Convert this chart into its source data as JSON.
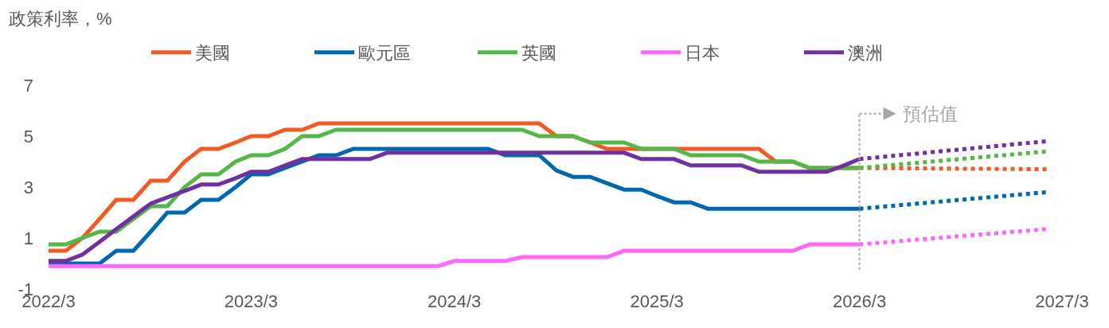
{
  "chart_data": {
    "type": "line",
    "ylabel": "政策利率，%",
    "x": [
      "2022-03",
      "2022-04",
      "2022-05",
      "2022-06",
      "2022-07",
      "2022-08",
      "2022-09",
      "2022-10",
      "2022-11",
      "2022-12",
      "2023-01",
      "2023-02",
      "2023-03",
      "2023-04",
      "2023-05",
      "2023-06",
      "2023-07",
      "2023-08",
      "2023-09",
      "2023-10",
      "2023-11",
      "2023-12",
      "2024-01",
      "2024-02",
      "2024-03",
      "2024-04",
      "2024-05",
      "2024-06",
      "2024-07",
      "2024-08",
      "2024-09",
      "2024-10",
      "2024-11",
      "2024-12",
      "2025-01",
      "2025-02",
      "2025-03",
      "2025-04",
      "2025-05",
      "2025-06",
      "2025-07",
      "2025-08",
      "2025-09",
      "2025-10",
      "2025-11",
      "2025-12",
      "2026-01",
      "2026-02",
      "2026-03"
    ],
    "series": [
      {
        "name": "美國",
        "color": "#f15a22",
        "values": [
          0.5,
          0.5,
          1.0,
          1.75,
          2.5,
          2.5,
          3.25,
          3.25,
          4.0,
          4.5,
          4.5,
          4.75,
          5.0,
          5.0,
          5.25,
          5.25,
          5.5,
          5.5,
          5.5,
          5.5,
          5.5,
          5.5,
          5.5,
          5.5,
          5.5,
          5.5,
          5.5,
          5.5,
          5.5,
          5.5,
          5.0,
          5.0,
          4.75,
          4.5,
          4.5,
          4.5,
          4.5,
          4.5,
          4.5,
          4.5,
          4.5,
          4.5,
          4.5,
          4.0,
          4.0,
          3.75,
          3.75,
          3.75,
          3.75
        ]
      },
      {
        "name": "歐元區",
        "color": "#0067b1",
        "values": [
          0,
          0,
          0,
          0,
          0.5,
          0.5,
          1.25,
          2.0,
          2.0,
          2.5,
          2.5,
          3.0,
          3.5,
          3.5,
          3.75,
          4.0,
          4.25,
          4.25,
          4.5,
          4.5,
          4.5,
          4.5,
          4.5,
          4.5,
          4.5,
          4.5,
          4.5,
          4.25,
          4.25,
          4.25,
          3.65,
          3.4,
          3.4,
          3.15,
          2.9,
          2.9,
          2.65,
          2.4,
          2.4,
          2.15,
          2.15,
          2.15,
          2.15,
          2.15,
          2.15,
          2.15,
          2.15,
          2.15,
          2.15
        ]
      },
      {
        "name": "英國",
        "color": "#54b848",
        "values": [
          0.75,
          0.75,
          1.0,
          1.25,
          1.25,
          1.75,
          2.25,
          2.25,
          3.0,
          3.5,
          3.5,
          4.0,
          4.25,
          4.25,
          4.5,
          5.0,
          5.0,
          5.25,
          5.25,
          5.25,
          5.25,
          5.25,
          5.25,
          5.25,
          5.25,
          5.25,
          5.25,
          5.25,
          5.25,
          5.0,
          5.0,
          5.0,
          4.75,
          4.75,
          4.75,
          4.5,
          4.5,
          4.5,
          4.25,
          4.25,
          4.25,
          4.25,
          4.0,
          4.0,
          4.0,
          3.75,
          3.75,
          3.75,
          3.75
        ]
      },
      {
        "name": "日本",
        "color": "#ff66ff",
        "values": [
          -0.1,
          -0.1,
          -0.1,
          -0.1,
          -0.1,
          -0.1,
          -0.1,
          -0.1,
          -0.1,
          -0.1,
          -0.1,
          -0.1,
          -0.1,
          -0.1,
          -0.1,
          -0.1,
          -0.1,
          -0.1,
          -0.1,
          -0.1,
          -0.1,
          -0.1,
          -0.1,
          -0.1,
          0.1,
          0.1,
          0.1,
          0.1,
          0.25,
          0.25,
          0.25,
          0.25,
          0.25,
          0.25,
          0.5,
          0.5,
          0.5,
          0.5,
          0.5,
          0.5,
          0.5,
          0.5,
          0.5,
          0.5,
          0.5,
          0.75,
          0.75,
          0.75,
          0.75
        ]
      },
      {
        "name": "澳洲",
        "color": "#7030a0",
        "values": [
          0.1,
          0.1,
          0.35,
          0.85,
          1.35,
          1.85,
          2.35,
          2.6,
          2.85,
          3.1,
          3.1,
          3.35,
          3.6,
          3.6,
          3.85,
          4.1,
          4.1,
          4.1,
          4.1,
          4.1,
          4.35,
          4.35,
          4.35,
          4.35,
          4.35,
          4.35,
          4.35,
          4.35,
          4.35,
          4.35,
          4.35,
          4.35,
          4.35,
          4.35,
          4.35,
          4.1,
          4.1,
          4.1,
          3.85,
          3.85,
          3.85,
          3.85,
          3.6,
          3.6,
          3.6,
          3.6,
          3.6,
          3.85,
          4.1
        ]
      },
      {
        "color": "#f15a22",
        "line_style": "dotted",
        "x": [
          "2026-03",
          "2027-02"
        ],
        "values": [
          3.75,
          3.7
        ]
      },
      {
        "color": "#0067b1",
        "line_style": "dotted",
        "x": [
          "2026-03",
          "2027-02"
        ],
        "values": [
          2.15,
          2.8
        ]
      },
      {
        "color": "#54b848",
        "line_style": "dotted",
        "x": [
          "2026-03",
          "2027-02"
        ],
        "values": [
          3.75,
          4.4
        ]
      },
      {
        "color": "#ff66ff",
        "line_style": "dotted",
        "x": [
          "2026-03",
          "2027-02"
        ],
        "values": [
          0.75,
          1.35
        ]
      },
      {
        "color": "#7030a0",
        "line_style": "dotted",
        "x": [
          "2026-03",
          "2027-02"
        ],
        "values": [
          4.1,
          4.8
        ]
      }
    ],
    "xlim": [
      "2022-03",
      "2027-03"
    ],
    "xticks": [
      {
        "value": "2022-03",
        "label": "2022/3"
      },
      {
        "value": "2023-03",
        "label": "2023/3"
      },
      {
        "value": "2024-03",
        "label": "2024/3"
      },
      {
        "value": "2025-03",
        "label": "2025/3"
      },
      {
        "value": "2026-03",
        "label": "2026/3"
      },
      {
        "value": "2027-03",
        "label": "2027/3"
      }
    ],
    "ylim": [
      -1,
      7
    ],
    "yticks": [
      -1,
      1,
      3,
      5,
      7
    ],
    "ref_lines": [
      {
        "axis": "x",
        "value": "2026-03",
        "label": "預估值",
        "color": "#a6a6a6",
        "line_style": "dotted"
      }
    ],
    "legend": "top",
    "grid": false
  }
}
